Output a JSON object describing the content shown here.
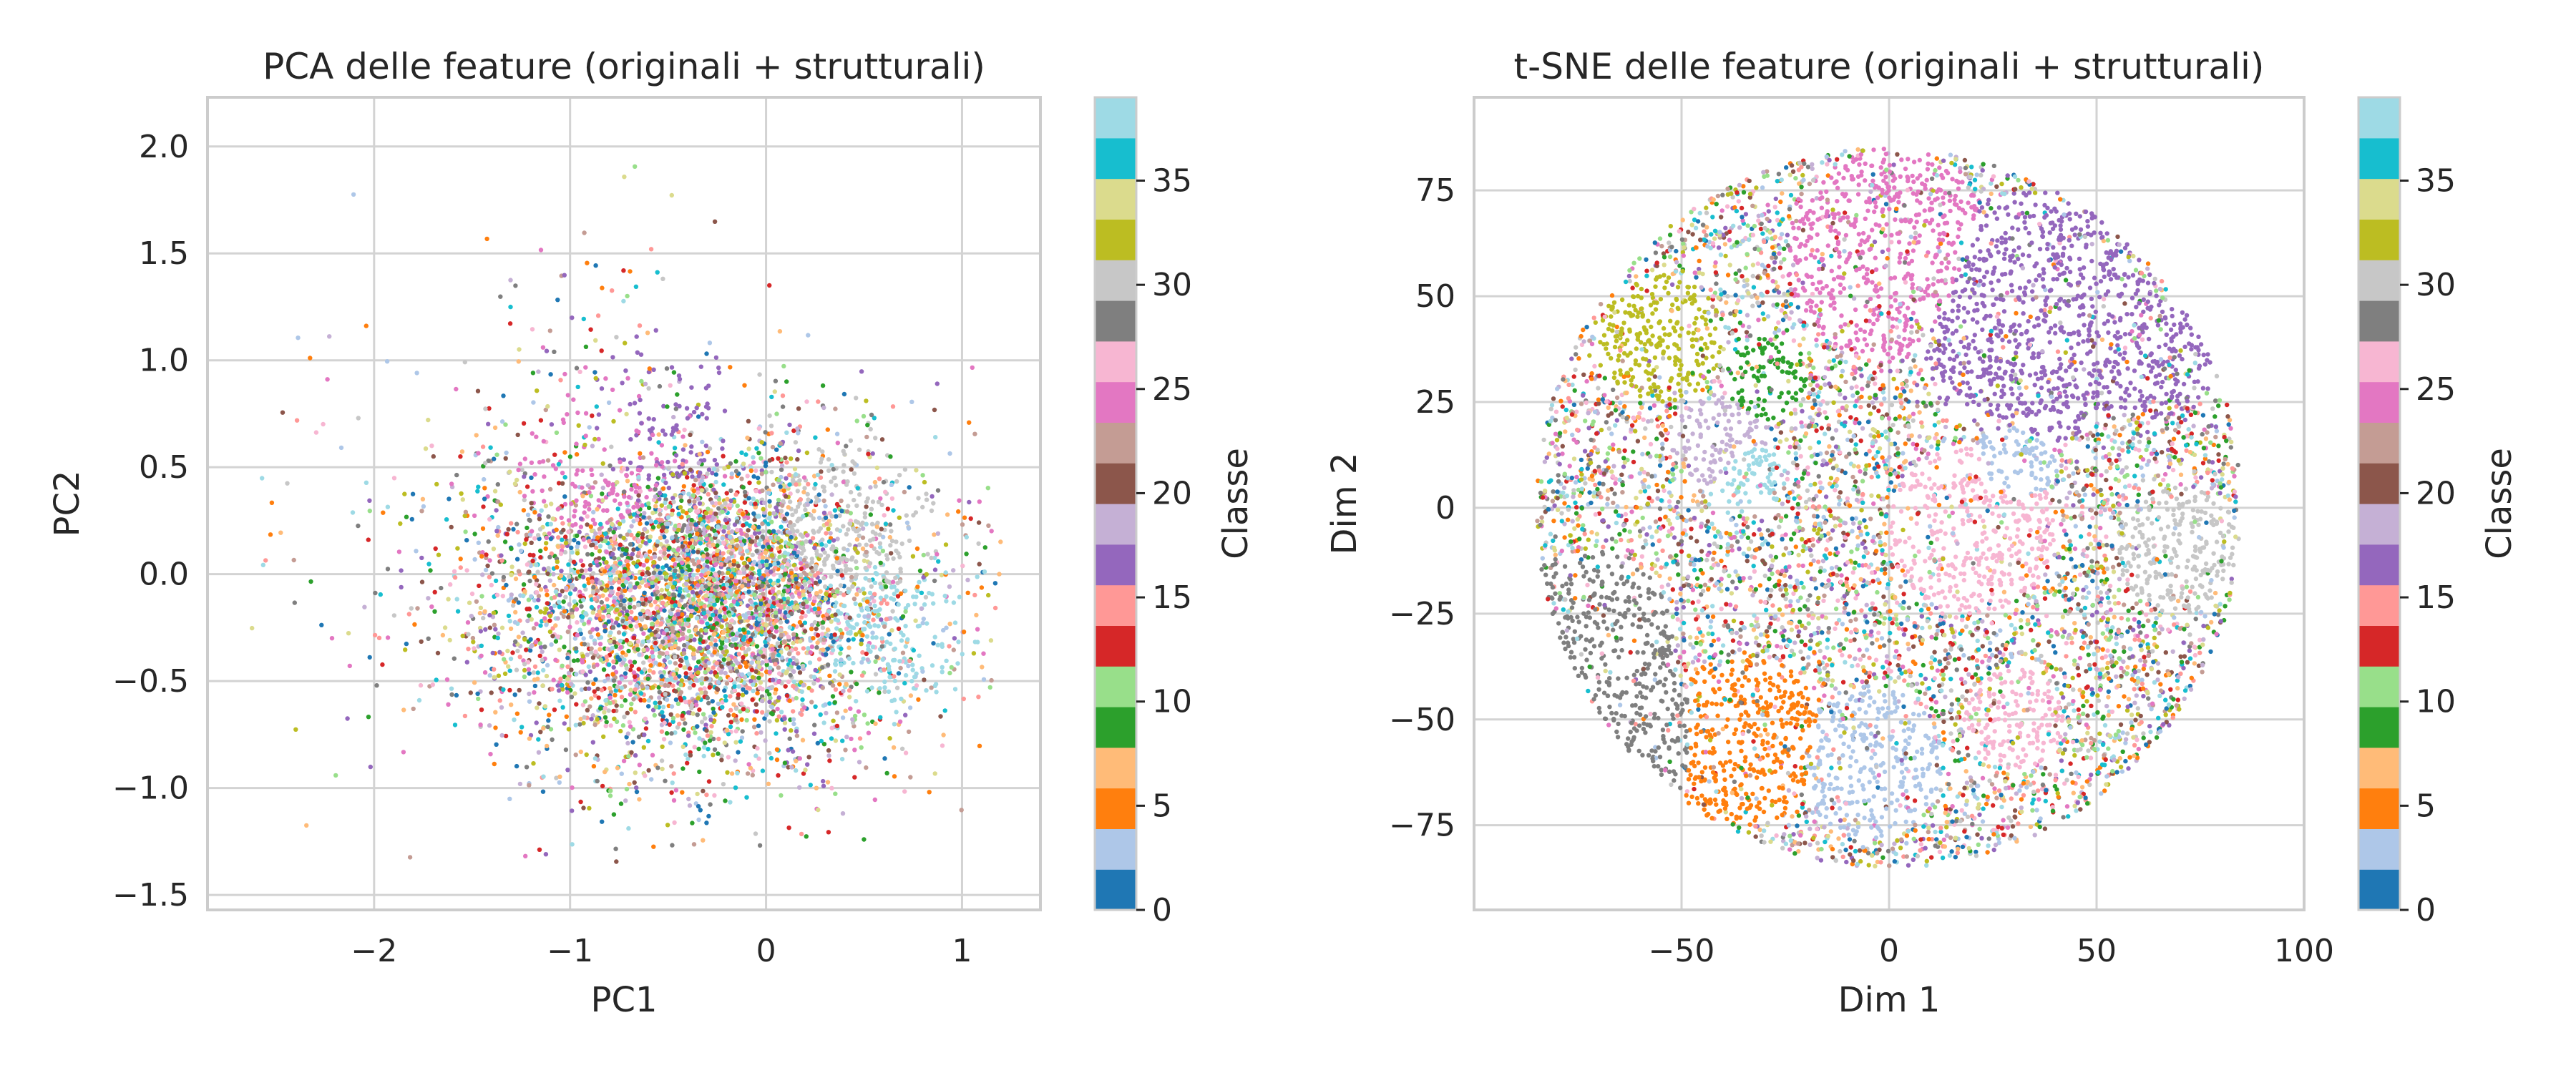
{
  "colorbar": {
    "label": "Classe",
    "ticks": [
      0,
      5,
      10,
      15,
      20,
      25,
      30,
      35
    ],
    "range": [
      0,
      39
    ],
    "colors": [
      "#1f77b4",
      "#aec7e8",
      "#ff7f0e",
      "#ffbb78",
      "#2ca02c",
      "#98df8a",
      "#d62728",
      "#ff9896",
      "#9467bd",
      "#c5b0d5",
      "#8c564b",
      "#c49c94",
      "#e377c2",
      "#f7b6d2",
      "#7f7f7f",
      "#c7c7c7",
      "#bcbd22",
      "#dbdb8d",
      "#17becf",
      "#9edae5"
    ]
  },
  "chart_data": [
    {
      "type": "scatter",
      "title": "PCA delle feature (originali + strutturali)",
      "xlabel": "PC1",
      "ylabel": "PC2",
      "xlim": [
        -2.85,
        1.4
      ],
      "ylim": [
        -1.57,
        2.23
      ],
      "xticks": [
        -2,
        -1,
        0,
        1
      ],
      "yticks": [
        -1.5,
        -1.0,
        -0.5,
        0.0,
        0.5,
        1.0,
        1.5,
        2.0
      ],
      "xtick_labels": [
        "−2",
        "−1",
        "0",
        "1"
      ],
      "ytick_labels": [
        "−1.5",
        "−1.0",
        "−0.5",
        "0.0",
        "0.5",
        "1.0",
        "1.5",
        "2.0"
      ],
      "grid": true,
      "colorbar_label": "Classe",
      "point_cloud": {
        "center": [
          -0.25,
          -0.1
        ],
        "spread": [
          0.55,
          0.38
        ],
        "x_range": [
          -2.7,
          1.2
        ],
        "y_range": [
          -1.4,
          2.05
        ],
        "n_points": 6000
      },
      "clusters": [
        {
          "class": 38,
          "x": 0.7,
          "y": -0.3
        },
        {
          "class": 31,
          "x": 0.5,
          "y": 0.3
        },
        {
          "class": 24,
          "x": -0.9,
          "y": 0.6
        },
        {
          "class": 16,
          "x": -0.5,
          "y": 0.8
        }
      ]
    },
    {
      "type": "scatter",
      "title": "t-SNE delle feature (originali + strutturali)",
      "xlabel": "Dim 1",
      "ylabel": "Dim 2",
      "xlim": [
        -100,
        100
      ],
      "ylim": [
        -95,
        97
      ],
      "xticks": [
        -50,
        0,
        50,
        100
      ],
      "yticks": [
        -75,
        -50,
        -25,
        0,
        25,
        50,
        75
      ],
      "xtick_labels": [
        "−50",
        "0",
        "50",
        "100"
      ],
      "ytick_labels": [
        "−75",
        "−50",
        "−25",
        "0",
        "25",
        "50",
        "75"
      ],
      "grid": true,
      "colorbar_label": "Classe",
      "point_cloud": {
        "center": [
          0,
          0
        ],
        "radius": 85,
        "n_points": 9000
      },
      "clusters": [
        {
          "class": 16,
          "x": 35,
          "y": 45,
          "r": 30
        },
        {
          "class": 16,
          "x": 65,
          "y": 35,
          "r": 14
        },
        {
          "class": 28,
          "x": -72,
          "y": -30,
          "r": 20
        },
        {
          "class": 28,
          "x": -60,
          "y": -55,
          "r": 18
        },
        {
          "class": 4,
          "x": -35,
          "y": -55,
          "r": 20
        },
        {
          "class": 2,
          "x": -5,
          "y": -60,
          "r": 18
        },
        {
          "class": 30,
          "x": 70,
          "y": -10,
          "r": 15
        },
        {
          "class": 26,
          "x": 20,
          "y": -5,
          "r": 20
        },
        {
          "class": 24,
          "x": 0,
          "y": 60,
          "r": 25
        },
        {
          "class": 26,
          "x": 30,
          "y": -50,
          "r": 12
        },
        {
          "class": 33,
          "x": -55,
          "y": 40,
          "r": 15
        },
        {
          "class": 18,
          "x": -40,
          "y": 15,
          "r": 12
        },
        {
          "class": 38,
          "x": -35,
          "y": 8,
          "r": 10
        },
        {
          "class": 9,
          "x": -30,
          "y": 30,
          "r": 10
        },
        {
          "class": 2,
          "x": 30,
          "y": 10,
          "r": 10
        }
      ]
    }
  ]
}
